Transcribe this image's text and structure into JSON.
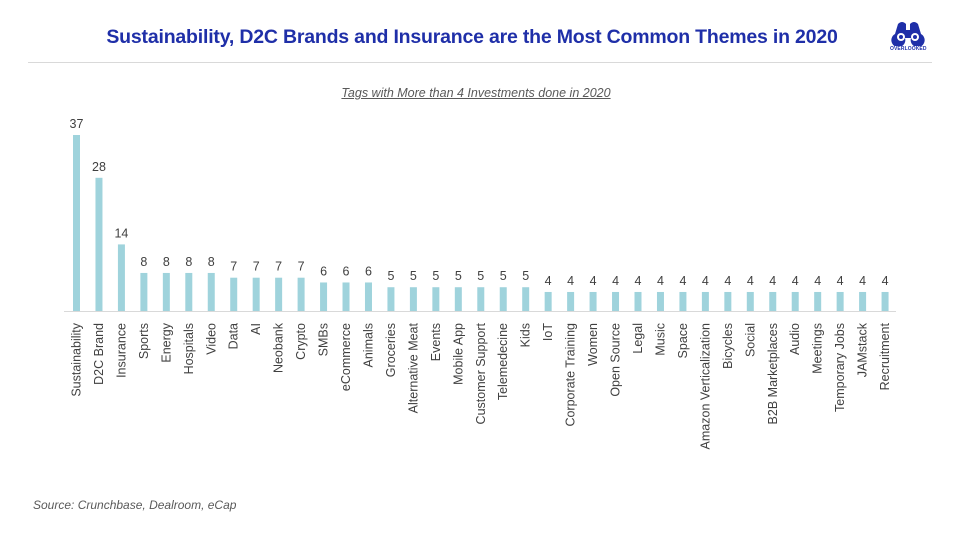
{
  "header": {
    "title": "Sustainability, D2C Brands and Insurance are the Most Common Themes in 2020",
    "logo_text": "OVERLOOKED"
  },
  "colors": {
    "title": "#1f2fa8",
    "bar": "#9fd3dc",
    "text": "#404040"
  },
  "chart_data": {
    "type": "bar",
    "title": "Tags with More than 4 Investments done in 2020",
    "xlabel": "",
    "ylabel": "",
    "ylim": [
      0,
      37
    ],
    "grid": false,
    "legend": "none",
    "categories": [
      "Sustainability",
      "D2C Brand",
      "Insurance",
      "Sports",
      "Energy",
      "Hospitals",
      "Video",
      "Data",
      "AI",
      "Neobank",
      "Crypto",
      "SMBs",
      "eCommerce",
      "Animals",
      "Groceries",
      "Alternative Meat",
      "Events",
      "Mobile App",
      "Customer Support",
      "Telemedecine",
      "Kids",
      "IoT",
      "Corporate Training",
      "Women",
      "Open Source",
      "Legal",
      "Music",
      "Space",
      "Amazon Verticalization",
      "Bicycles",
      "Social",
      "B2B Marketplaces",
      "Audio",
      "Meetings",
      "Temporary Jobs",
      "JAMstack",
      "Recruitment"
    ],
    "values": [
      37,
      28,
      14,
      8,
      8,
      8,
      8,
      7,
      7,
      7,
      7,
      6,
      6,
      6,
      5,
      5,
      5,
      5,
      5,
      5,
      5,
      4,
      4,
      4,
      4,
      4,
      4,
      4,
      4,
      4,
      4,
      4,
      4,
      4,
      4,
      4,
      4
    ]
  },
  "footer": {
    "source": "Source: Crunchbase, Dealroom, eCap"
  }
}
